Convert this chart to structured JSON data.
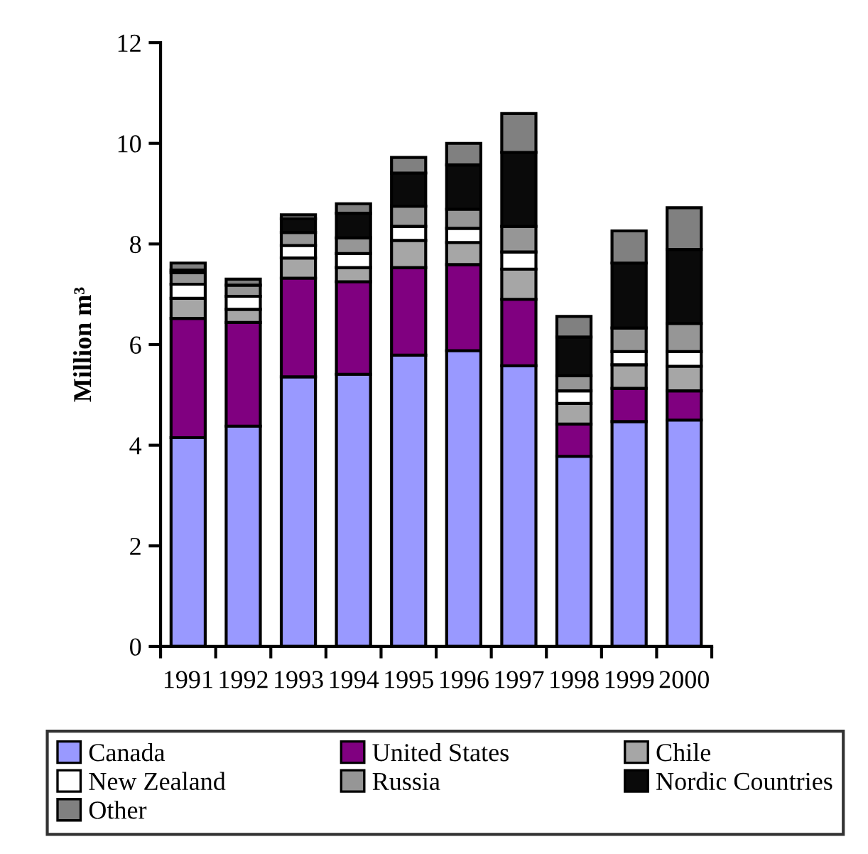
{
  "chart_data": {
    "type": "bar",
    "stacked": true,
    "ylabel": "Million m³",
    "categories": [
      "1991",
      "1992",
      "1993",
      "1994",
      "1995",
      "1996",
      "1997",
      "1998",
      "1999",
      "2000"
    ],
    "ylim": [
      0,
      12
    ],
    "yticks": [
      0,
      2,
      4,
      6,
      8,
      10,
      12
    ],
    "grid": false,
    "legend": "bottom",
    "series": [
      {
        "name": "Canada",
        "color": "#9999ff",
        "values": [
          4.15,
          4.38,
          5.36,
          5.41,
          5.79,
          5.88,
          5.58,
          3.78,
          4.47,
          4.5
        ]
      },
      {
        "name": "United States",
        "color": "#800080",
        "values": [
          2.37,
          2.06,
          1.96,
          1.84,
          1.74,
          1.71,
          1.32,
          0.64,
          0.66,
          0.58
        ]
      },
      {
        "name": "Chile",
        "color": "#a6a6a6",
        "values": [
          0.4,
          0.26,
          0.4,
          0.28,
          0.54,
          0.44,
          0.6,
          0.41,
          0.47,
          0.49
        ]
      },
      {
        "name": "New Zealand",
        "color": "#ffffff",
        "values": [
          0.28,
          0.26,
          0.25,
          0.28,
          0.28,
          0.28,
          0.34,
          0.25,
          0.26,
          0.29
        ]
      },
      {
        "name": "Russia",
        "color": "#969696",
        "values": [
          0.23,
          0.22,
          0.26,
          0.31,
          0.4,
          0.38,
          0.51,
          0.3,
          0.47,
          0.56
        ]
      },
      {
        "name": "Nordic Countries",
        "color": "#0a0a0a",
        "values": [
          0.05,
          null,
          0.27,
          0.49,
          0.66,
          0.88,
          1.47,
          0.77,
          1.29,
          1.47
        ]
      },
      {
        "name": "Other",
        "color": "#808080",
        "values": [
          0.14,
          0.12,
          0.08,
          0.19,
          0.31,
          0.43,
          0.77,
          0.41,
          0.64,
          0.83
        ]
      }
    ]
  }
}
